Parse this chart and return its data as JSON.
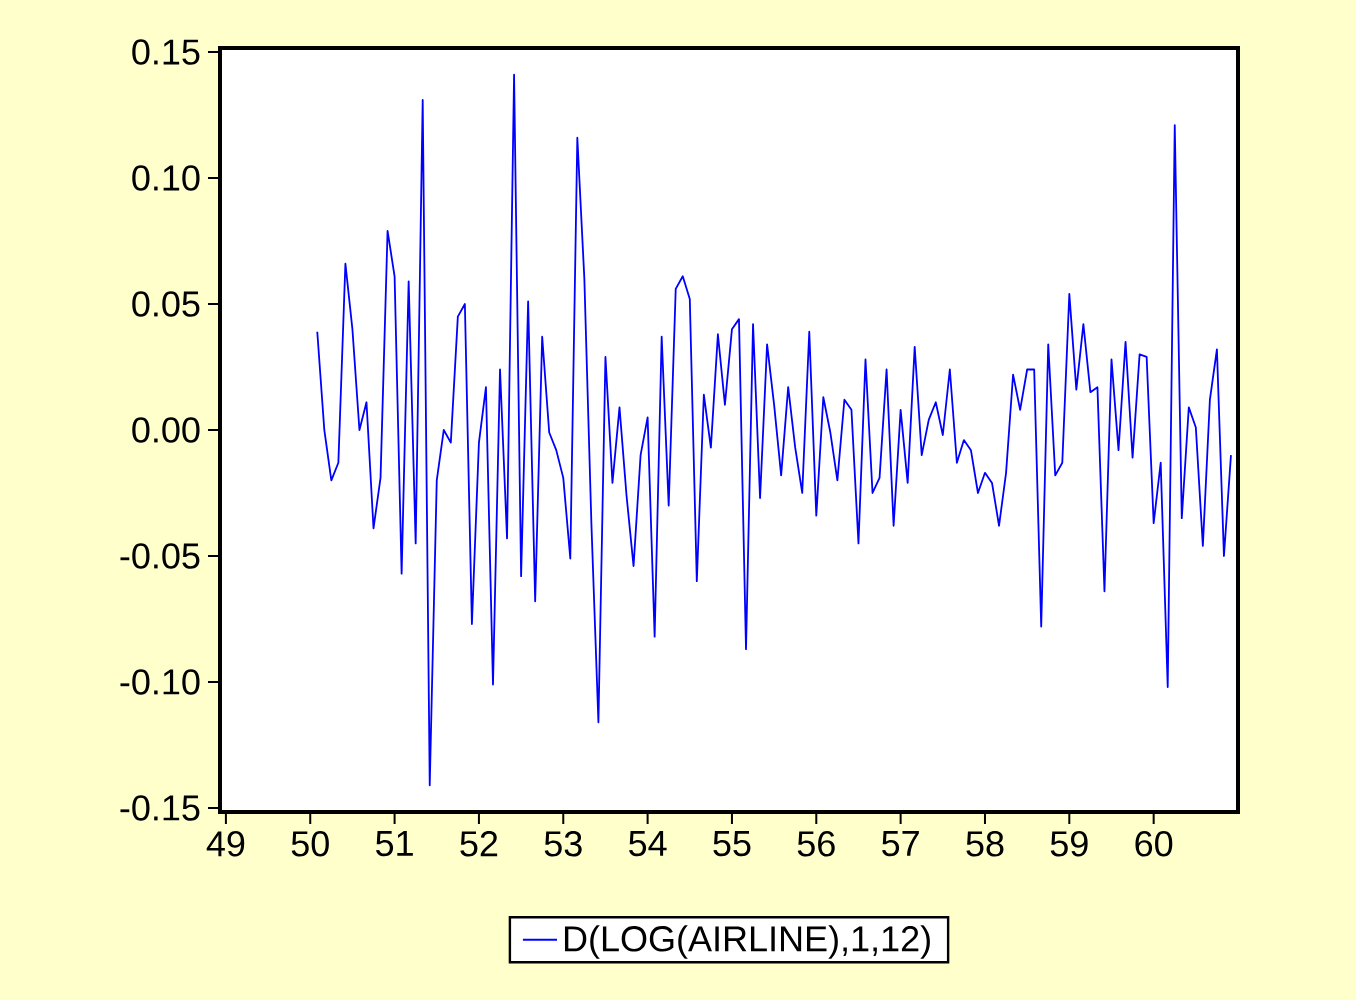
{
  "chart_data": {
    "type": "line",
    "x": [
      50.0833,
      50.1667,
      50.25,
      50.3333,
      50.4167,
      50.5,
      50.5833,
      50.6667,
      50.75,
      50.8333,
      50.9167,
      51,
      51.0833,
      51.1667,
      51.25,
      51.3333,
      51.4167,
      51.5,
      51.5833,
      51.6667,
      51.75,
      51.8333,
      51.9167,
      52,
      52.0833,
      52.1667,
      52.25,
      52.3333,
      52.4167,
      52.5,
      52.5833,
      52.6667,
      52.75,
      52.8333,
      52.9167,
      53,
      53.0833,
      53.1667,
      53.25,
      53.3333,
      53.4167,
      53.5,
      53.5833,
      53.6667,
      53.75,
      53.8333,
      53.9167,
      54,
      54.0833,
      54.1667,
      54.25,
      54.3333,
      54.4167,
      54.5,
      54.5833,
      54.6667,
      54.75,
      54.8333,
      54.9167,
      55,
      55.0833,
      55.1667,
      55.25,
      55.3333,
      55.4167,
      55.5,
      55.5833,
      55.6667,
      55.75,
      55.8333,
      55.9167,
      56,
      56.0833,
      56.1667,
      56.25,
      56.3333,
      56.4167,
      56.5,
      56.5833,
      56.6667,
      56.75,
      56.8333,
      56.9167,
      57,
      57.0833,
      57.1667,
      57.25,
      57.3333,
      57.4167,
      57.5,
      57.5833,
      57.6667,
      57.75,
      57.8333,
      57.9167,
      58,
      58.0833,
      58.1667,
      58.25,
      58.3333,
      58.4167,
      58.5,
      58.5833,
      58.6667,
      58.75,
      58.8333,
      58.9167,
      59,
      59.0833,
      59.1667,
      59.25,
      59.3333,
      59.4167,
      59.5,
      59.5833,
      59.6667,
      59.75,
      59.8333,
      59.9167,
      60,
      60.0833,
      60.1667,
      60.25,
      60.3333,
      60.4167,
      60.5,
      60.5833,
      60.6667,
      60.75,
      60.8333,
      60.9167
    ],
    "series": [
      {
        "name": "D(LOG(AIRLINE),1,12)",
        "color": "#0000ff",
        "values": [
          0.039,
          0.0,
          -0.02,
          -0.013,
          0.066,
          0.04,
          0.0,
          0.011,
          -0.039,
          -0.019,
          0.079,
          0.061,
          -0.057,
          0.059,
          -0.045,
          0.131,
          -0.141,
          -0.02,
          0.0,
          -0.005,
          0.045,
          0.05,
          -0.077,
          -0.005,
          0.017,
          -0.101,
          0.024,
          -0.043,
          0.141,
          -0.058,
          0.051,
          -0.068,
          0.037,
          -0.001,
          -0.008,
          -0.019,
          -0.051,
          0.116,
          0.06,
          -0.037,
          -0.116,
          0.029,
          -0.021,
          0.009,
          -0.026,
          -0.054,
          -0.01,
          0.005,
          -0.082,
          0.037,
          -0.03,
          0.056,
          0.061,
          0.052,
          -0.06,
          0.014,
          -0.007,
          0.038,
          0.01,
          0.04,
          0.044,
          -0.087,
          0.042,
          -0.027,
          0.034,
          0.01,
          -0.018,
          0.017,
          -0.007,
          -0.025,
          0.039,
          -0.034,
          0.013,
          -0.001,
          -0.02,
          0.012,
          0.008,
          -0.045,
          0.028,
          -0.025,
          -0.019,
          0.024,
          -0.038,
          0.008,
          -0.021,
          0.033,
          -0.01,
          0.004,
          0.011,
          -0.002,
          0.024,
          -0.013,
          -0.004,
          -0.008,
          -0.025,
          -0.017,
          -0.021,
          -0.038,
          -0.017,
          0.022,
          0.008,
          0.024,
          0.024,
          -0.078,
          0.034,
          -0.018,
          -0.013,
          0.054,
          0.016,
          0.042,
          0.015,
          0.017,
          -0.064,
          0.028,
          -0.008,
          0.035,
          -0.011,
          0.03,
          0.029,
          -0.037,
          -0.013,
          -0.102,
          0.121,
          -0.035,
          0.009,
          0.001,
          -0.046,
          0.012,
          0.032,
          -0.05,
          -0.01
        ]
      }
    ],
    "xlim": [
      48.93,
      61.0
    ],
    "xticks": [
      49,
      50,
      51,
      52,
      53,
      54,
      55,
      56,
      57,
      58,
      59,
      60
    ],
    "ylim": [
      -0.1516,
      0.1516
    ],
    "yticks": [
      -0.15,
      {
        "value": -0.1,
        "label": "-0.10"
      },
      -0.05,
      {
        "value": 0.0,
        "label": "0.00"
      },
      0.05,
      {
        "value": 0.1,
        "label": "0.10"
      },
      0.15
    ],
    "legend": "bottom"
  }
}
